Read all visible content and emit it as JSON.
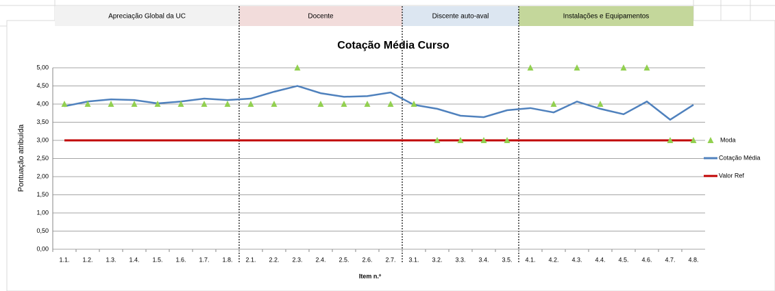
{
  "chart_data": {
    "type": "line",
    "title": "Cotação Média Curso",
    "x_label": "Item n.º",
    "y_label": "Pontuação atribuída",
    "groups": [
      {
        "label": "Apreciação Global da UC",
        "color": "#f2f2f2"
      },
      {
        "label": "Docente",
        "color": "#f2dcdb"
      },
      {
        "label": "Discente auto-aval",
        "color": "#dce6f1"
      },
      {
        "label": "Instalações e Equipamentos",
        "color": "#c4d79b"
      }
    ],
    "categories": [
      "1.1.",
      "1.2.",
      "1.3.",
      "1.4.",
      "1.5.",
      "1.6.",
      "1.7.",
      "1.8.",
      "2.1.",
      "2.2.",
      "2.3.",
      "2.4.",
      "2.5.",
      "2.6.",
      "2.7.",
      "3.1.",
      "3.2.",
      "3.3.",
      "3.4.",
      "3.5.",
      "4.1.",
      "4.2.",
      "4.3.",
      "4.4.",
      "4.5.",
      "4.6.",
      "4.7.",
      "4.8."
    ],
    "series": [
      {
        "name": "Moda",
        "color": "#92d050",
        "mode": "markers",
        "values": [
          4,
          4,
          4,
          4,
          4,
          4,
          4,
          4,
          4,
          4,
          5,
          4,
          4,
          4,
          4,
          4,
          3,
          3,
          3,
          3,
          5,
          4,
          5,
          4,
          5,
          5,
          3,
          3
        ]
      },
      {
        "name": "Cotação Média",
        "color": "#4f81bd",
        "mode": "line",
        "values": [
          3.94,
          4.07,
          4.13,
          4.11,
          4.02,
          4.07,
          4.15,
          4.11,
          4.15,
          4.34,
          4.5,
          4.3,
          4.2,
          4.22,
          4.32,
          3.98,
          3.87,
          3.68,
          3.64,
          3.83,
          3.89,
          3.77,
          4.07,
          3.87,
          3.72,
          4.07,
          3.57,
          3.98
        ]
      },
      {
        "name": "Valor Ref",
        "color": "#c00000",
        "mode": "line",
        "values": [
          3,
          3,
          3,
          3,
          3,
          3,
          3,
          3,
          3,
          3,
          3,
          3,
          3,
          3,
          3,
          3,
          3,
          3,
          3,
          3,
          3,
          3,
          3,
          3,
          3,
          3,
          3,
          3
        ]
      }
    ],
    "ylim": [
      0,
      5
    ],
    "yticks": [
      {
        "value": 0,
        "label": "0,00"
      },
      {
        "value": 0.5,
        "label": "0,50"
      },
      {
        "value": 1,
        "label": "1,00"
      },
      {
        "value": 1.5,
        "label": "1,50"
      },
      {
        "value": 2,
        "label": "2,00"
      },
      {
        "value": 2.5,
        "label": "2,50"
      },
      {
        "value": 3,
        "label": "3,00"
      },
      {
        "value": 3.5,
        "label": "3,50"
      },
      {
        "value": 4,
        "label": "4,00"
      },
      {
        "value": 4.5,
        "label": "4,50"
      },
      {
        "value": 5,
        "label": "5,00"
      }
    ],
    "grid": true,
    "legend": "right"
  }
}
